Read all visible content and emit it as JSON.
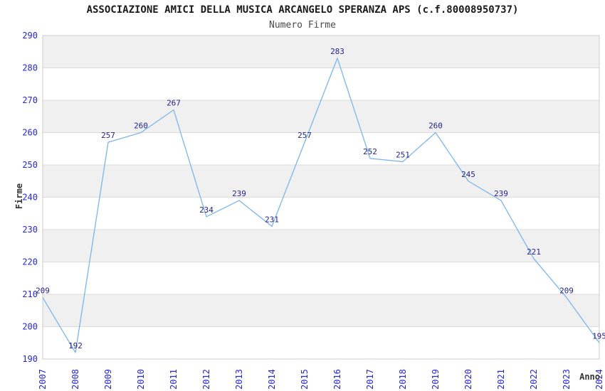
{
  "chart_data": {
    "type": "line",
    "title": "ASSOCIAZIONE AMICI DELLA MUSICA ARCANGELO SPERANZA APS (c.f.80008950737)",
    "subtitle": "Numero Firme",
    "xlabel": "Anno",
    "ylabel": "Firme",
    "categories": [
      "2007",
      "2008",
      "2009",
      "2010",
      "2011",
      "2012",
      "2013",
      "2014",
      "2015",
      "2016",
      "2017",
      "2018",
      "2019",
      "2020",
      "2021",
      "2022",
      "2023",
      "2024"
    ],
    "values": [
      209,
      192,
      257,
      260,
      267,
      234,
      239,
      231,
      257,
      283,
      252,
      251,
      260,
      245,
      239,
      221,
      209,
      195
    ],
    "ylim": [
      190,
      290
    ],
    "ytick_step": 10,
    "yticks": [
      190,
      200,
      210,
      220,
      230,
      240,
      250,
      260,
      270,
      280,
      290
    ],
    "show_point_labels": true,
    "legend_position": "none",
    "grid": "horizontal-bands"
  },
  "colors": {
    "line": "#7cb5ec",
    "band": "#f0f0f0",
    "gridline": "#dcdcdc",
    "plot_border": "#cccccc",
    "axis_tick_label": "#2626d8",
    "point_label": "#24248c",
    "title": "#1a1a1a",
    "subtitle": "#4a4a4a",
    "axis_title": "#333333",
    "background": "#ffffff"
  }
}
